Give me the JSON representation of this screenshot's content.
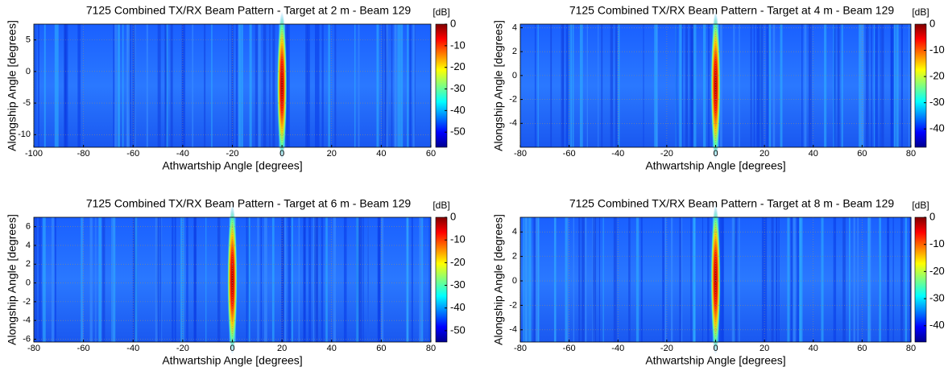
{
  "chart_data": [
    {
      "type": "heatmap",
      "title": "7125 Combined TX/RX Beam Pattern - Target at 2 m - Beam 129",
      "colorbar_label": "[dB]",
      "x_label": "Athwartship Angle [degrees]",
      "y_label": "Alongship Angle [degrees]",
      "xlim": [
        -100,
        60
      ],
      "xticks": [
        -100,
        -80,
        -60,
        -40,
        -20,
        0,
        20,
        40,
        60
      ],
      "ylim": [
        -12,
        7.5
      ],
      "yticks": [
        -10,
        -5,
        0,
        5
      ],
      "clim": [
        -57,
        0
      ],
      "cticks": [
        0,
        -10,
        -20,
        -30,
        -40,
        -50
      ],
      "grid": true
    },
    {
      "type": "heatmap",
      "title": "7125 Combined TX/RX Beam Pattern - Target at 4 m - Beam 129",
      "colorbar_label": "[dB]",
      "x_label": "Athwartship Angle [degrees]",
      "y_label": "Alongship Angle [degrees]",
      "xlim": [
        -80,
        80
      ],
      "xticks": [
        -80,
        -60,
        -40,
        -20,
        0,
        20,
        40,
        60,
        80
      ],
      "ylim": [
        -6,
        4.3
      ],
      "yticks": [
        -4,
        -2,
        0,
        2,
        4
      ],
      "clim": [
        -47,
        0
      ],
      "cticks": [
        0,
        -10,
        -20,
        -30,
        -40
      ],
      "grid": true
    },
    {
      "type": "heatmap",
      "title": "7125 Combined TX/RX Beam Pattern - Target at 6 m - Beam 129",
      "colorbar_label": "[dB]",
      "x_label": "Athwartship Angle [degrees]",
      "y_label": "Alongship Angle [degrees]",
      "xlim": [
        -80,
        80
      ],
      "xticks": [
        -80,
        -60,
        -40,
        -20,
        0,
        20,
        40,
        60,
        80
      ],
      "ylim": [
        -6.3,
        7
      ],
      "yticks": [
        -6,
        -4,
        -2,
        0,
        2,
        4,
        6
      ],
      "clim": [
        -55,
        0
      ],
      "cticks": [
        0,
        -10,
        -20,
        -30,
        -40,
        -50
      ],
      "grid": true
    },
    {
      "type": "heatmap",
      "title": "7125 Combined TX/RX Beam Pattern - Target at 8 m - Beam 129",
      "colorbar_label": "[dB]",
      "x_label": "Athwartship Angle [degrees]",
      "y_label": "Alongship Angle [degrees]",
      "xlim": [
        -80,
        80
      ],
      "xticks": [
        -80,
        -60,
        -40,
        -20,
        0,
        20,
        40,
        60,
        80
      ],
      "ylim": [
        -5,
        5.2
      ],
      "yticks": [
        -4,
        -2,
        0,
        2,
        4
      ],
      "clim": [
        -46,
        0
      ],
      "cticks": [
        0,
        -10,
        -20,
        -30,
        -40
      ],
      "grid": true
    }
  ]
}
